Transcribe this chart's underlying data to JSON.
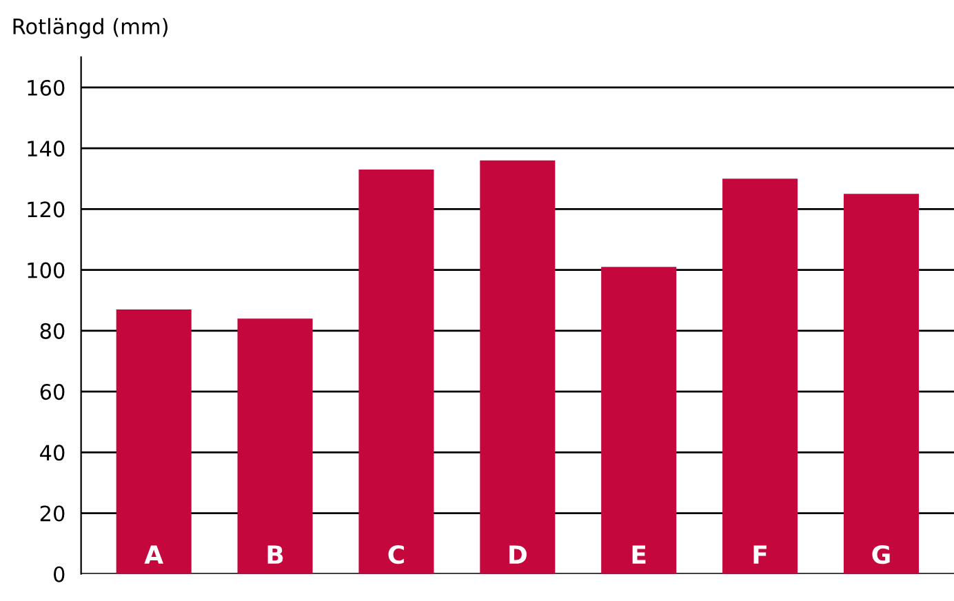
{
  "chart_data": {
    "type": "bar",
    "ylabel": "Rotlängd (mm)",
    "categories": [
      "A",
      "B",
      "C",
      "D",
      "E",
      "F",
      "G"
    ],
    "values": [
      87,
      84,
      133,
      136,
      101,
      130,
      125
    ],
    "color": "#c4073c",
    "ylim": [
      0,
      170
    ],
    "yticks": [
      0,
      20,
      40,
      60,
      80,
      100,
      120,
      140,
      160
    ],
    "grid": "y"
  }
}
